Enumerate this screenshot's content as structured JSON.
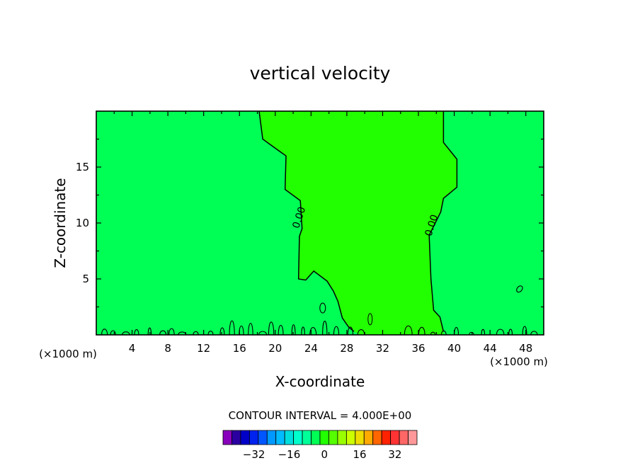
{
  "chart_data": {
    "type": "contour",
    "title": "vertical velocity",
    "xlabel": "X-coordinate",
    "ylabel": "Z-coordinate",
    "x_unit_left": "(×1000 m)",
    "x_unit_right": "(×1000 m)",
    "xlim": [
      0,
      50
    ],
    "ylim": [
      0,
      20
    ],
    "xticks": [
      4,
      8,
      12,
      16,
      20,
      24,
      28,
      32,
      36,
      40,
      44,
      48
    ],
    "yticks": [
      5,
      10,
      15
    ],
    "contour_label": "0.00",
    "contour_interval_text": "CONTOUR INTERVAL = 4.000E+00",
    "background_color": "#00ff55",
    "updraft_color": "#22ff00",
    "zero_contour_left": [
      [
        18.2,
        20
      ],
      [
        18.6,
        17.5
      ],
      [
        20.5,
        16.4
      ],
      [
        21.2,
        16
      ],
      [
        21.1,
        13.0
      ],
      [
        22.8,
        12.0
      ],
      [
        23.0,
        9.5
      ],
      [
        22.7,
        8.8
      ],
      [
        22.6,
        5.0
      ],
      [
        23.4,
        4.9
      ],
      [
        24.3,
        5.7
      ],
      [
        25.8,
        4.8
      ],
      [
        26.5,
        3.9
      ],
      [
        27.0,
        3.0
      ],
      [
        27.5,
        1.5
      ],
      [
        28.2,
        0.7
      ],
      [
        28.8,
        0.3
      ]
    ],
    "zero_contour_right": [
      [
        38.8,
        20
      ],
      [
        38.8,
        17.2
      ],
      [
        40.3,
        15.7
      ],
      [
        40.3,
        13.2
      ],
      [
        38.8,
        12.2
      ],
      [
        38.5,
        11.0
      ],
      [
        37.2,
        8.9
      ],
      [
        37.4,
        5.0
      ],
      [
        37.7,
        2.2
      ],
      [
        38.4,
        1.6
      ],
      [
        38.8,
        0.3
      ]
    ],
    "colorbar": {
      "colors": [
        "#8800bb",
        "#2a00a0",
        "#0000c8",
        "#0022ee",
        "#0055ff",
        "#0099ff",
        "#00bbff",
        "#00dddd",
        "#00ffcc",
        "#00ff99",
        "#00ff55",
        "#22ff00",
        "#55ff00",
        "#99ff00",
        "#ccff00",
        "#eedd00",
        "#ffaa00",
        "#ff6600",
        "#ff2200",
        "#ff3333",
        "#ff6666",
        "#ff9999"
      ],
      "tick_labels": [
        "−32",
        "−16",
        "0",
        "16",
        "32"
      ],
      "tick_values": [
        -32,
        -16,
        0,
        16,
        32
      ]
    }
  }
}
